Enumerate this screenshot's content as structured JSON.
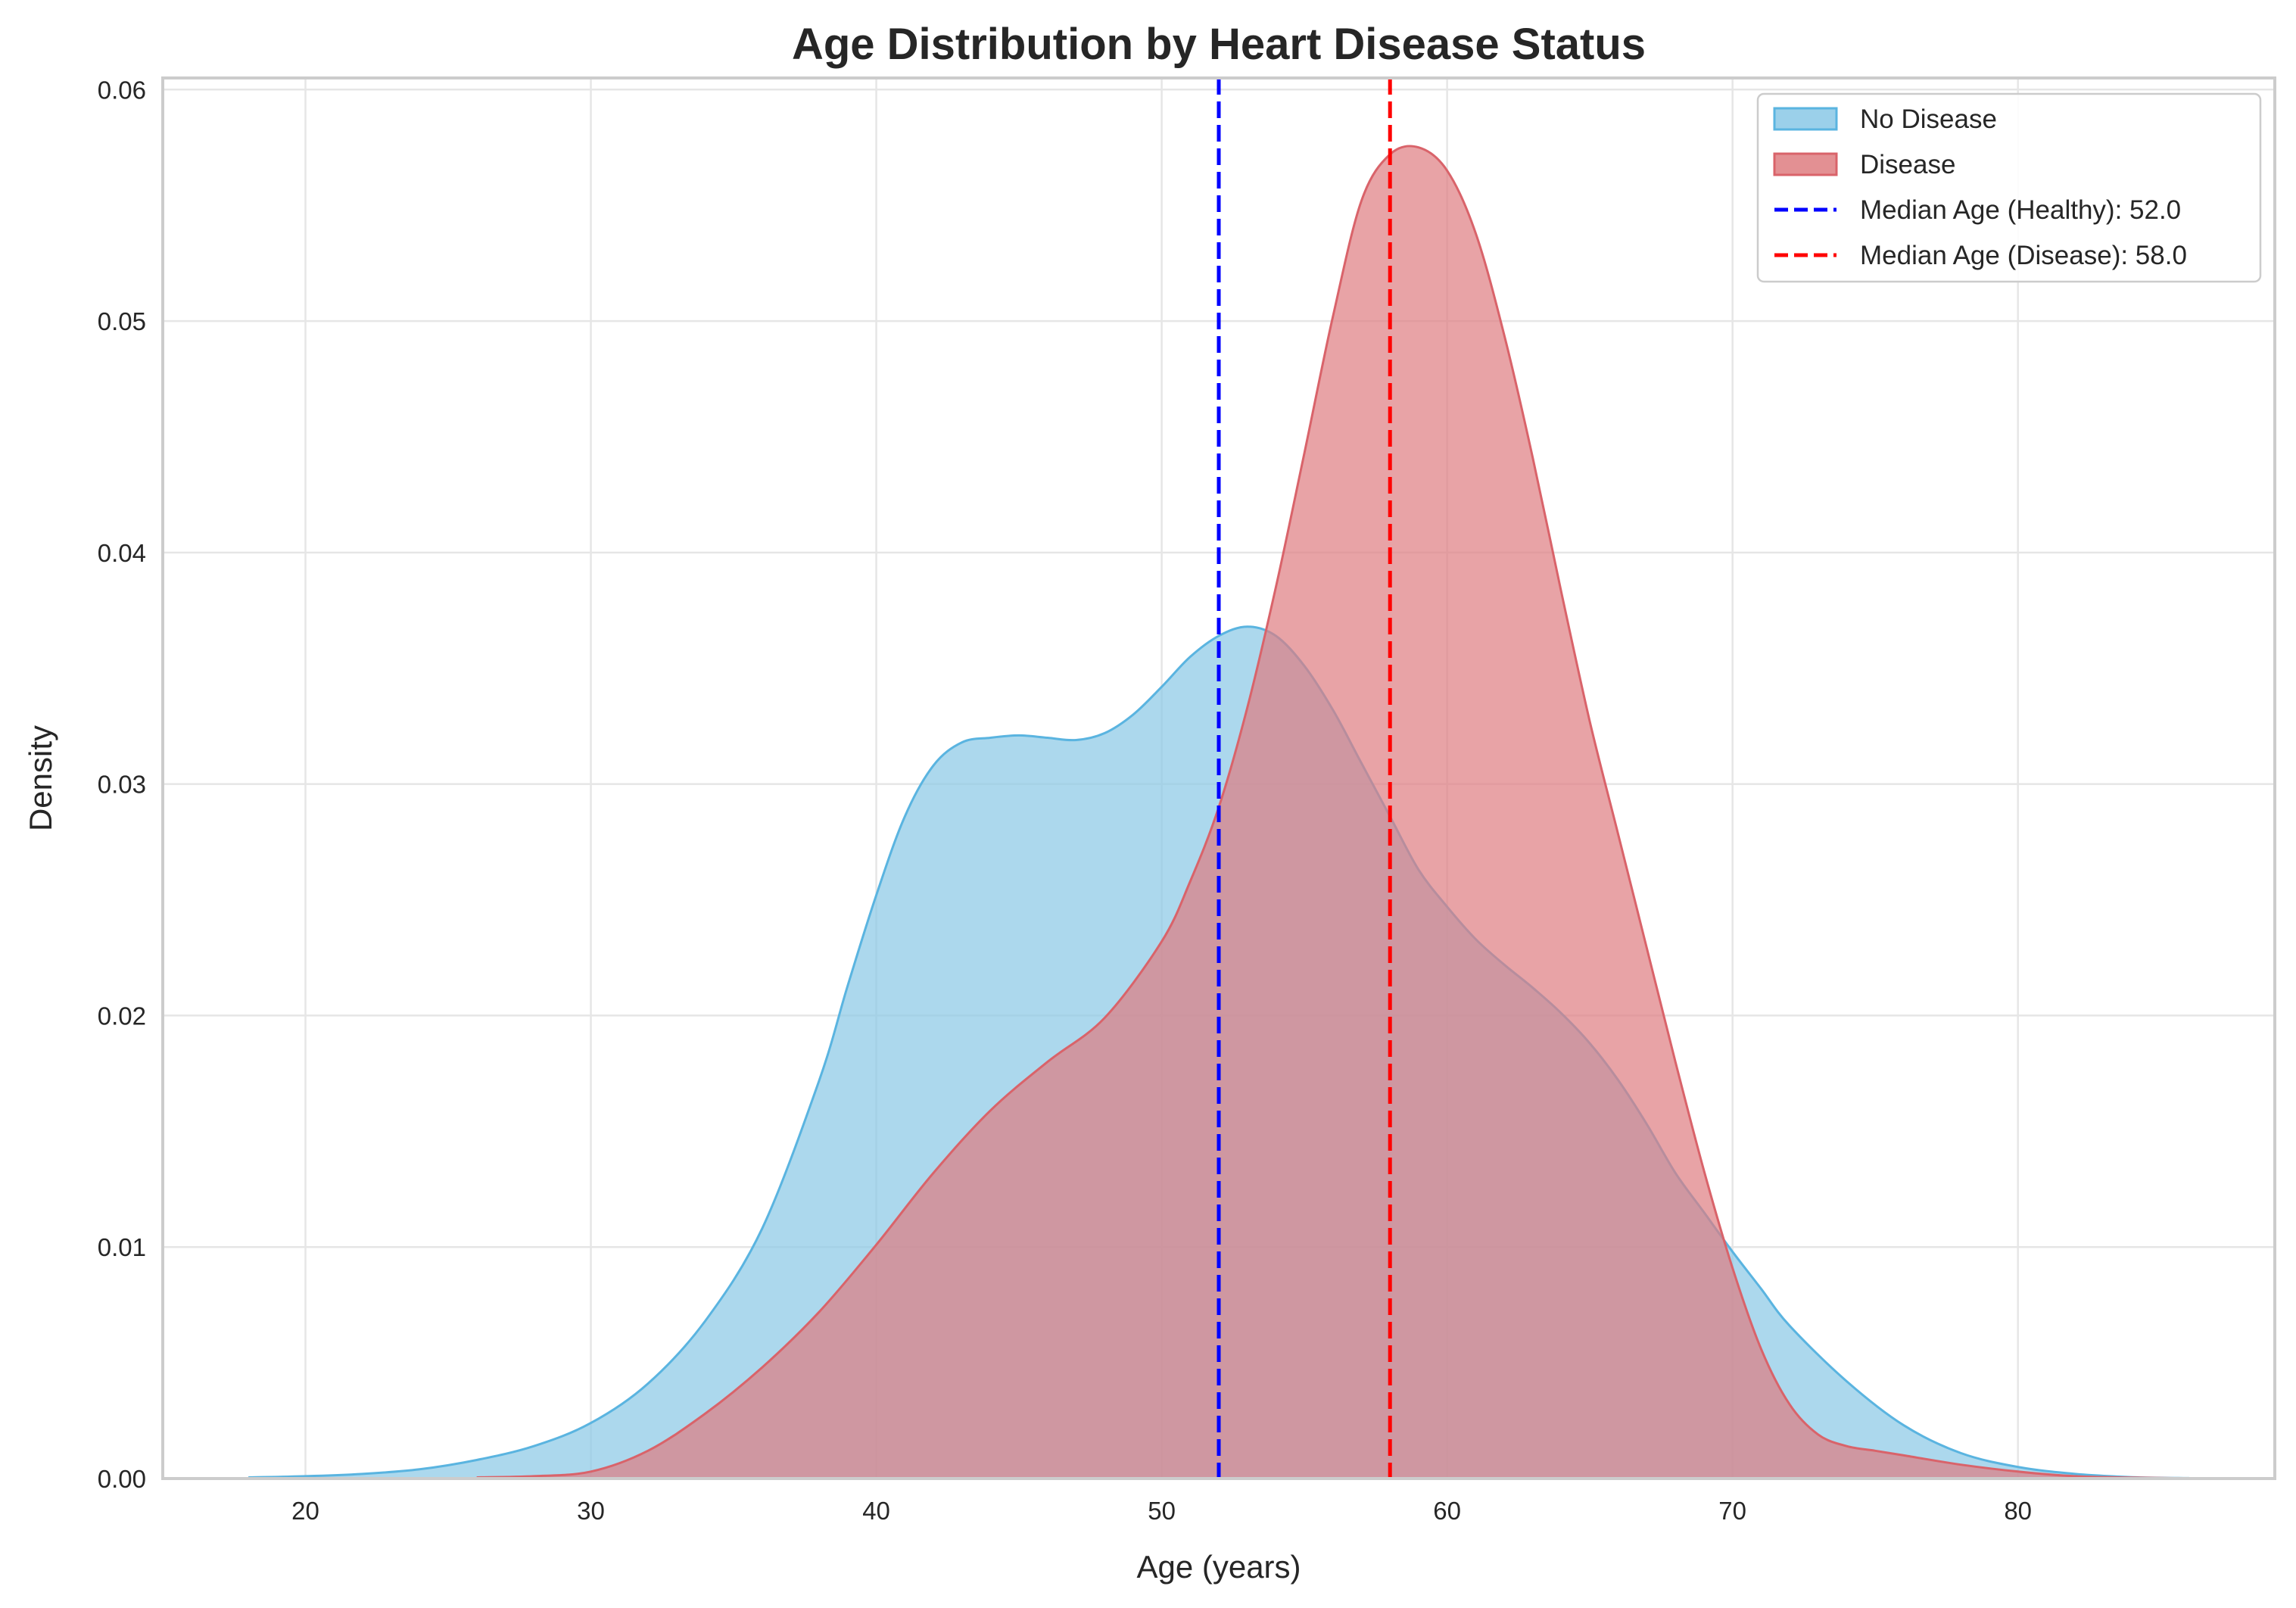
{
  "chart_data": {
    "type": "area",
    "title": "Age Distribution by Heart Disease Status",
    "xlabel": "Age (years)",
    "ylabel": "Density",
    "xlim": [
      15,
      89
    ],
    "ylim": [
      0,
      0.0605
    ],
    "xticks": [
      20,
      30,
      40,
      50,
      60,
      70,
      80
    ],
    "yticks": [
      "0.00",
      "0.01",
      "0.02",
      "0.03",
      "0.04",
      "0.05",
      "0.06"
    ],
    "grid": true,
    "legend_position": "top-right",
    "series": [
      {
        "name": "No Disease",
        "color": "#5ab4e0",
        "fill": "#89c8e6",
        "x": [
          18,
          20,
          22,
          24,
          26,
          28,
          30,
          32,
          34,
          36,
          38,
          39,
          40,
          41,
          42,
          43,
          44,
          45,
          46,
          47,
          48,
          49,
          50,
          51,
          52,
          53,
          54,
          55,
          56,
          57,
          58,
          59,
          60,
          61,
          62,
          63,
          64,
          65,
          66,
          67,
          68,
          69,
          70,
          71,
          72,
          74,
          76,
          78,
          80,
          82,
          84,
          86
        ],
        "y": [
          5e-05,
          0.0001,
          0.0002,
          0.0004,
          0.0008,
          0.0014,
          0.0024,
          0.0041,
          0.0068,
          0.0108,
          0.0172,
          0.0213,
          0.0252,
          0.0286,
          0.0308,
          0.0318,
          0.032,
          0.0321,
          0.032,
          0.0319,
          0.0322,
          0.033,
          0.0342,
          0.0355,
          0.0364,
          0.0368,
          0.0364,
          0.0351,
          0.0332,
          0.0309,
          0.0286,
          0.0263,
          0.0247,
          0.0233,
          0.0222,
          0.0212,
          0.0201,
          0.0188,
          0.0172,
          0.0153,
          0.0132,
          0.0115,
          0.0098,
          0.0082,
          0.0066,
          0.0042,
          0.0023,
          0.0011,
          0.0005,
          0.0002,
          6e-05,
          2e-05
        ]
      },
      {
        "name": "Disease",
        "color": "#d9636a",
        "fill": "#de7c80",
        "x": [
          26,
          28,
          30,
          32,
          34,
          36,
          38,
          40,
          42,
          44,
          46,
          48,
          50,
          51,
          52,
          53,
          54,
          55,
          56,
          57,
          58,
          59,
          60,
          61,
          62,
          63,
          64,
          65,
          66,
          67,
          68,
          69,
          70,
          71,
          72,
          73,
          74,
          75,
          76,
          78,
          80,
          82,
          84,
          86
        ],
        "y": [
          5e-05,
          0.0001,
          0.0003,
          0.0012,
          0.0028,
          0.0048,
          0.0072,
          0.0101,
          0.0132,
          0.0159,
          0.018,
          0.0199,
          0.0232,
          0.0258,
          0.029,
          0.0333,
          0.0385,
          0.0443,
          0.0502,
          0.0552,
          0.0572,
          0.0575,
          0.0565,
          0.0538,
          0.0494,
          0.0441,
          0.0383,
          0.0327,
          0.0278,
          0.0229,
          0.018,
          0.0133,
          0.0091,
          0.0056,
          0.0032,
          0.0019,
          0.0014,
          0.0012,
          0.001,
          0.0006,
          0.0003,
          0.0001,
          4e-05,
          1e-05
        ]
      }
    ],
    "reference_lines": [
      {
        "name": "Median Age (Healthy): 52.0",
        "x": 52,
        "color": "#0000ff",
        "style": "dashed"
      },
      {
        "name": "Median Age (Disease): 58.0",
        "x": 58,
        "color": "#ff0000",
        "style": "dashed"
      }
    ]
  }
}
